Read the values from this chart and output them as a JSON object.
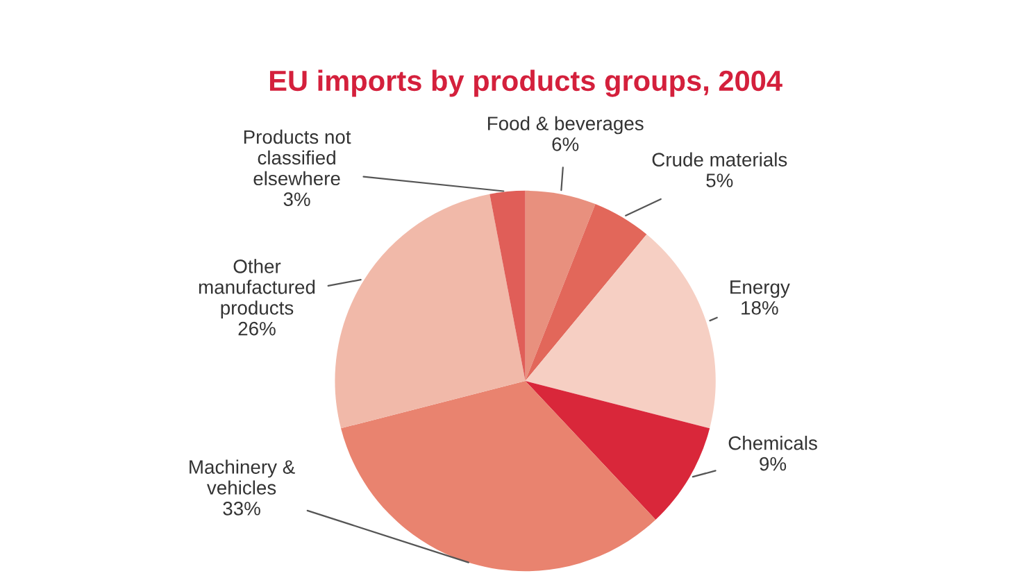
{
  "chart_data": {
    "type": "pie",
    "title": "EU imports by products groups, 2004",
    "categories": [
      "Food & beverages",
      "Crude materials",
      "Energy",
      "Chemicals",
      "Machinery &\nvehicles",
      "Other\nmanufactured\nproducts",
      "Products not\nclassified\nelsewhere"
    ],
    "values": [
      6,
      5,
      18,
      9,
      33,
      26,
      3
    ],
    "value_labels": [
      "6%",
      "5%",
      "18%",
      "9%",
      "33%",
      "26%",
      "3%"
    ],
    "colors": [
      "#e8907e",
      "#e2675a",
      "#f6cfc3",
      "#d9273a",
      "#e9836f",
      "#f1b9a9",
      "#e05e58"
    ]
  }
}
